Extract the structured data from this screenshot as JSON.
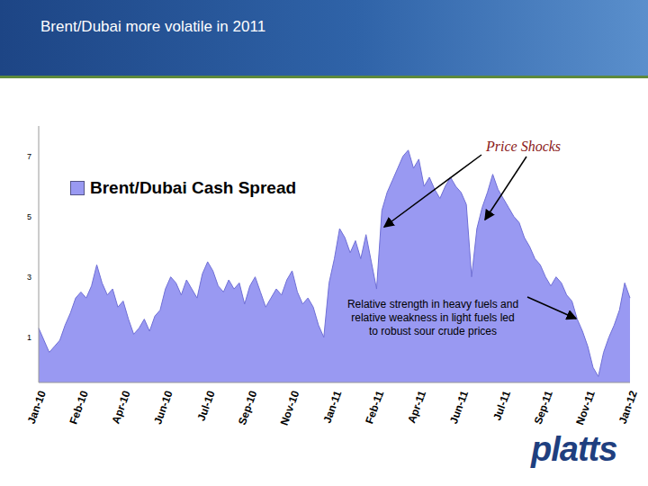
{
  "chart_data": {
    "type": "area",
    "title": "Brent/Dubai more volatile in 2011",
    "annotations": [
      "Price Shocks",
      "Relative strength in heavy fuels and relative weakness in light fuels led to robust sour crude prices"
    ],
    "logo": "platts",
    "legend": "upper left",
    "categories": [
      "Jan-10",
      null,
      null,
      null,
      null,
      null,
      null,
      null,
      "Feb-10",
      null,
      null,
      null,
      null,
      null,
      null,
      null,
      "Apr-10",
      null,
      null,
      null,
      null,
      null,
      null,
      null,
      "Jun-10",
      null,
      null,
      null,
      null,
      null,
      null,
      null,
      "Jul-10",
      null,
      null,
      null,
      null,
      null,
      null,
      null,
      "Sep-10",
      null,
      null,
      null,
      null,
      null,
      null,
      null,
      "Nov-10",
      null,
      null,
      null,
      null,
      null,
      null,
      null,
      "Jan-11",
      null,
      null,
      null,
      null,
      null,
      null,
      null,
      "Feb-11",
      null,
      null,
      null,
      null,
      null,
      null,
      null,
      "Apr-11",
      null,
      null,
      null,
      null,
      null,
      null,
      null,
      "Jun-11",
      null,
      null,
      null,
      null,
      null,
      null,
      null,
      "Jul-11",
      null,
      null,
      null,
      null,
      null,
      null,
      null,
      "Sep-11",
      null,
      null,
      null,
      null,
      null,
      null,
      null,
      "Nov-11",
      null,
      null,
      null,
      null,
      null,
      null,
      null,
      "Jan-12"
    ],
    "series": [
      {
        "name": "Brent/Dubai Cash Spread",
        "color": "#9999f2",
        "values": [
          1.3,
          0.9,
          0.5,
          0.7,
          0.9,
          1.4,
          1.8,
          2.3,
          2.5,
          2.3,
          2.7,
          3.4,
          2.8,
          2.4,
          2.6,
          2.0,
          2.2,
          1.6,
          1.1,
          1.3,
          1.6,
          1.2,
          1.7,
          1.9,
          2.6,
          3.0,
          2.8,
          2.4,
          2.9,
          2.6,
          2.3,
          3.1,
          3.5,
          3.2,
          2.7,
          2.5,
          2.9,
          2.6,
          2.8,
          2.1,
          2.7,
          3.0,
          2.5,
          2.0,
          2.3,
          2.6,
          2.4,
          2.9,
          3.2,
          2.5,
          2.1,
          2.3,
          2.0,
          1.4,
          1.0,
          2.8,
          3.6,
          4.6,
          4.3,
          3.8,
          4.2,
          3.6,
          4.4,
          3.5,
          2.6,
          5.2,
          5.8,
          6.2,
          6.6,
          7.0,
          7.2,
          6.6,
          6.9,
          6.0,
          6.3,
          5.9,
          5.6,
          6.0,
          6.3,
          6.0,
          5.8,
          5.4,
          3.0,
          4.6,
          5.3,
          5.8,
          6.4,
          5.9,
          5.6,
          5.3,
          5.0,
          4.8,
          4.3,
          4.0,
          3.6,
          3.4,
          3.0,
          2.7,
          3.0,
          2.8,
          2.4,
          2.2,
          1.6,
          1.2,
          0.7,
          0.0,
          -0.3,
          0.5,
          1.0,
          1.4,
          1.9,
          2.8,
          2.3
        ]
      }
    ],
    "ylim": [
      -0.5,
      8
    ],
    "yticks": [
      1,
      3,
      5,
      7
    ]
  }
}
